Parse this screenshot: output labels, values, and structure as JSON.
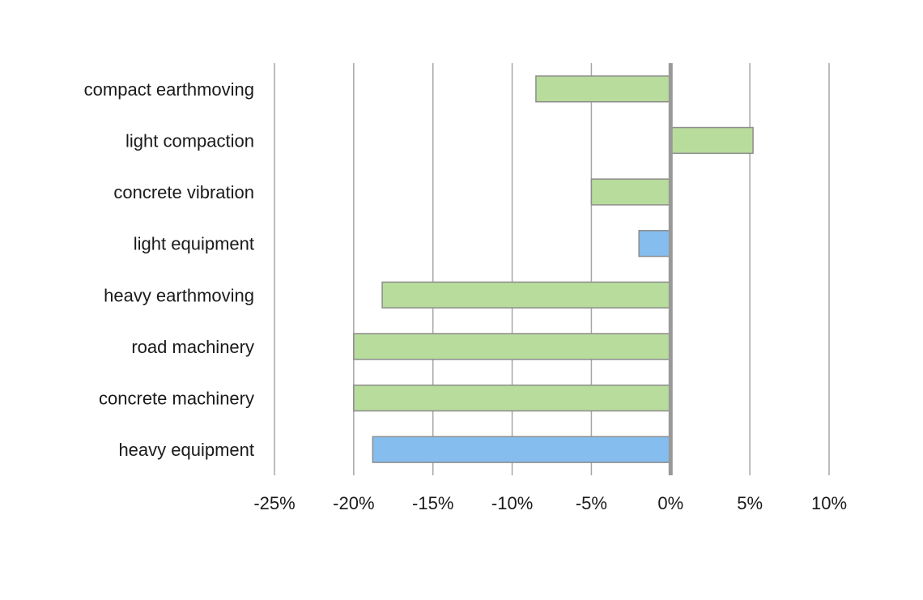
{
  "chart_data": {
    "type": "bar",
    "orientation": "horizontal",
    "categories": [
      "compact earthmoving",
      "light compaction",
      "concrete vibration",
      "light equipment",
      "heavy earthmoving",
      "road machinery",
      "concrete machinery",
      "heavy equipment"
    ],
    "values": [
      -8.5,
      5.2,
      -5.0,
      -2.0,
      -18.2,
      -20.0,
      -20.0,
      -18.8
    ],
    "value_unit": "%",
    "bar_colors": [
      "#b8dc9c",
      "#b8dc9c",
      "#b8dc9c",
      "#85bdee",
      "#b8dc9c",
      "#b8dc9c",
      "#b8dc9c",
      "#85bdee"
    ],
    "bar_border_color": "#8c8c8c",
    "xlim": [
      -25,
      10
    ],
    "x_ticks": [
      -25,
      -20,
      -15,
      -10,
      -5,
      0,
      5,
      10
    ],
    "x_tick_labels": [
      "-25%",
      "-20%",
      "-15%",
      "-10%",
      "-5%",
      "0%",
      "5%",
      "10%"
    ],
    "grid": "vertical",
    "title": "",
    "xlabel": "",
    "ylabel": ""
  }
}
